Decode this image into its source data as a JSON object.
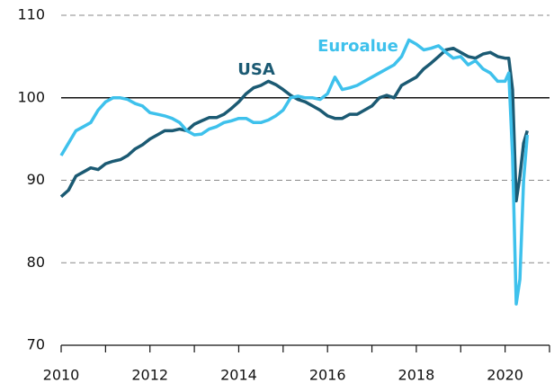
{
  "chart_data": {
    "type": "line",
    "x": [
      2010,
      2010.167,
      2010.333,
      2010.5,
      2010.667,
      2010.833,
      2011,
      2011.167,
      2011.333,
      2011.5,
      2011.667,
      2011.833,
      2012,
      2012.167,
      2012.333,
      2012.5,
      2012.667,
      2012.833,
      2013,
      2013.167,
      2013.333,
      2013.5,
      2013.667,
      2013.833,
      2014,
      2014.167,
      2014.333,
      2014.5,
      2014.667,
      2014.833,
      2015,
      2015.167,
      2015.333,
      2015.5,
      2015.667,
      2015.833,
      2016,
      2016.167,
      2016.333,
      2016.5,
      2016.667,
      2016.833,
      2017,
      2017.167,
      2017.333,
      2017.5,
      2017.667,
      2017.833,
      2018,
      2018.167,
      2018.333,
      2018.5,
      2018.667,
      2018.833,
      2019,
      2019.167,
      2019.333,
      2019.5,
      2019.667,
      2019.833,
      2020,
      2020.083,
      2020.167,
      2020.25,
      2020.333,
      2020.417,
      2020.5
    ],
    "series": [
      {
        "name": "USA",
        "color": "#1b5a73",
        "values": [
          88.0,
          88.8,
          90.5,
          91.0,
          91.5,
          91.3,
          92.0,
          92.3,
          92.5,
          93.0,
          93.8,
          94.3,
          95.0,
          95.5,
          96.0,
          96.0,
          96.2,
          96.0,
          96.8,
          97.2,
          97.6,
          97.6,
          98.0,
          98.7,
          99.5,
          100.5,
          101.2,
          101.5,
          102.0,
          101.6,
          101.0,
          100.3,
          99.8,
          99.5,
          99.0,
          98.5,
          97.8,
          97.5,
          97.5,
          98.0,
          98.0,
          98.5,
          99.0,
          100.0,
          100.3,
          100.0,
          101.5,
          102.0,
          102.5,
          103.5,
          104.2,
          105.0,
          105.8,
          106.0,
          105.5,
          105.0,
          104.8,
          105.3,
          105.5,
          105.0,
          104.8,
          104.8,
          101.0,
          87.5,
          90.5,
          94.5,
          96.0
        ]
      },
      {
        "name": "Euroalue",
        "color": "#3ec1ec",
        "values": [
          93.0,
          94.5,
          96.0,
          96.5,
          97.0,
          98.5,
          99.5,
          100.0,
          100.0,
          99.8,
          99.3,
          99.0,
          98.2,
          98.0,
          97.8,
          97.5,
          97.0,
          96.0,
          95.5,
          95.6,
          96.2,
          96.5,
          97.0,
          97.2,
          97.5,
          97.5,
          97.0,
          97.0,
          97.3,
          97.8,
          98.5,
          100.0,
          100.2,
          100.0,
          100.0,
          99.8,
          100.5,
          102.5,
          101.0,
          101.2,
          101.5,
          102.0,
          102.5,
          103.0,
          103.5,
          104.0,
          105.0,
          107.0,
          106.5,
          105.8,
          106.0,
          106.3,
          105.5,
          104.8,
          105.0,
          104.0,
          104.5,
          103.5,
          103.0,
          102.0,
          102.0,
          103.0,
          93.0,
          75.0,
          78.0,
          90.0,
          95.5
        ]
      }
    ],
    "xlim": [
      2010,
      2021
    ],
    "xticks": [
      2010,
      2012,
      2014,
      2016,
      2018,
      2020
    ],
    "xminorticks": [
      2011,
      2013,
      2015,
      2017,
      2019,
      2021
    ],
    "ylim": [
      70,
      110
    ],
    "yticks": [
      70,
      80,
      90,
      100,
      110
    ],
    "hline": 100,
    "grid": true
  }
}
